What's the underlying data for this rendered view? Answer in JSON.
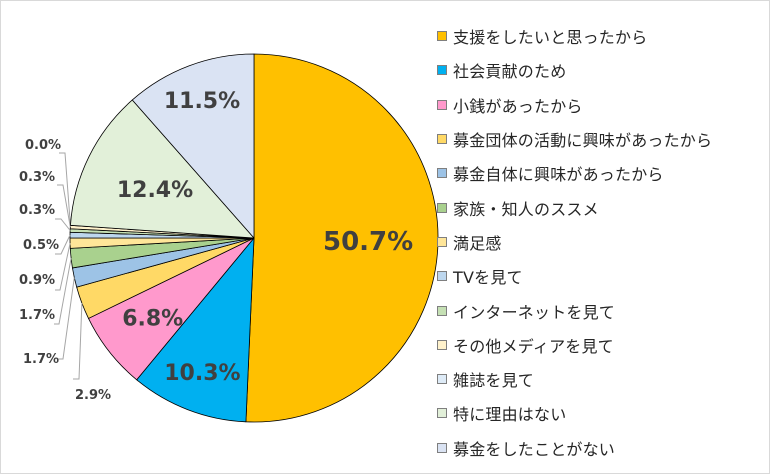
{
  "chart_data": {
    "type": "pie",
    "categories": [
      "支援をしたいと思ったから",
      "社会貢献のため",
      "小銭があったから",
      "募金団体の活動に興味があったから",
      "募金自体に興味があったから",
      "家族・知人のススメ",
      "満足感",
      "TVを見て",
      "インターネットを見て",
      "その他メディアを見て",
      "雑誌を見て",
      "特に理由はない",
      "募金をしたことがない"
    ],
    "values": [
      50.7,
      10.3,
      6.8,
      2.9,
      1.7,
      1.7,
      0.9,
      0.5,
      0.3,
      0.3,
      0.0,
      12.4,
      11.5
    ],
    "data_labels": [
      "50.7%",
      "10.3%",
      "6.8%",
      "2.9%",
      "1.7%",
      "1.7%",
      "0.9%",
      "0.5%",
      "0.3%",
      "0.3%",
      "0.0%",
      "12.4%",
      "11.5%"
    ],
    "colors": [
      "#FFC000",
      "#00B0F0",
      "#FF99CC",
      "#FFD966",
      "#9DC3E6",
      "#A9D18E",
      "#FFE699",
      "#BDD7EE",
      "#C5E0B4",
      "#FFF2CC",
      "#DEEBF7",
      "#E2F0D9",
      "#DAE3F3"
    ],
    "legend_position": "right",
    "start_angle": "12 o'clock",
    "direction": "clockwise"
  }
}
